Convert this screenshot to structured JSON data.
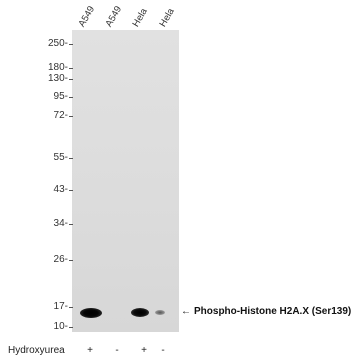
{
  "lanes": [
    "A549",
    "A549",
    "Hela",
    "Hela"
  ],
  "markers": [
    "250-",
    "180-",
    "130-",
    "95-",
    "72-",
    "55-",
    "43-",
    "34-",
    "26-",
    "17-",
    "10-"
  ],
  "target": {
    "arrow": "←",
    "name": "Phospho-Histone H2A.X (Ser139)"
  },
  "treatment": {
    "label": "Hydroxyurea",
    "signs": [
      "+",
      "-",
      "+",
      "-"
    ]
  },
  "band_intensity": [
    1.0,
    0.0,
    0.85,
    0.25
  ],
  "colors": {
    "blot_bg": "#dcdcdc",
    "band": "#0a0a0a"
  }
}
